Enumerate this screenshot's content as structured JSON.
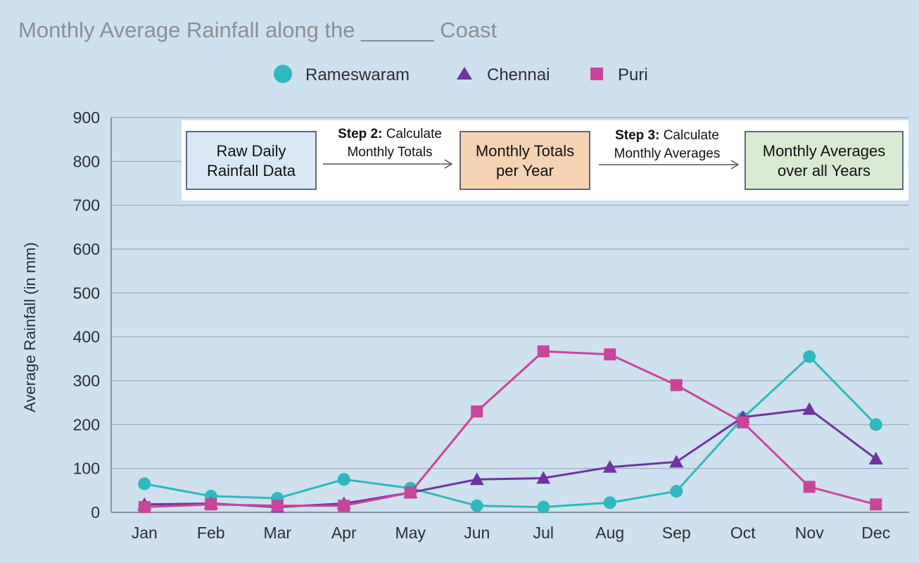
{
  "chart_data": {
    "type": "line",
    "title": "Monthly Average Rainfall along the ______ Coast",
    "xlabel": "",
    "ylabel": "Average Rainfall (in mm)",
    "ylim": [
      0,
      900
    ],
    "yticks": [
      0,
      100,
      200,
      300,
      400,
      500,
      600,
      700,
      800,
      900
    ],
    "grid": true,
    "legend_position": "top-center",
    "categories": [
      "Jan",
      "Feb",
      "Mar",
      "Apr",
      "May",
      "Jun",
      "Jul",
      "Aug",
      "Sep",
      "Oct",
      "Nov",
      "Dec"
    ],
    "series": [
      {
        "name": "Rameswaram",
        "marker": "circle",
        "color": "#2fb8bd",
        "values": [
          65,
          37,
          32,
          75,
          55,
          15,
          12,
          22,
          48,
          215,
          355,
          200
        ]
      },
      {
        "name": "Chennai",
        "marker": "triangle",
        "color": "#6e35a0",
        "values": [
          18,
          20,
          12,
          20,
          45,
          75,
          78,
          103,
          115,
          217,
          235,
          122
        ]
      },
      {
        "name": "Puri",
        "marker": "square",
        "color": "#c8459a",
        "values": [
          12,
          18,
          15,
          15,
          45,
          230,
          367,
          360,
          290,
          205,
          58,
          18
        ]
      }
    ]
  },
  "flow": {
    "box1": {
      "line1": "Raw Daily",
      "line2": "Rainfall Data",
      "fill": "#dae7f4"
    },
    "step2": {
      "bold": "Step 2:",
      "rest": " Calculate",
      "line2": "Monthly Totals"
    },
    "box2": {
      "line1": "Monthly Totals",
      "line2": "per Year",
      "fill": "#f6d3b3"
    },
    "step3": {
      "bold": "Step 3:",
      "rest": " Calculate",
      "line2": "Monthly Averages"
    },
    "box3": {
      "line1": "Monthly Averages",
      "line2": "over all Years",
      "fill": "#d8ead1"
    }
  },
  "colors": {
    "background": "#cfe0ef",
    "grid": "#9aa8b4",
    "axis": "#6f7c88"
  }
}
